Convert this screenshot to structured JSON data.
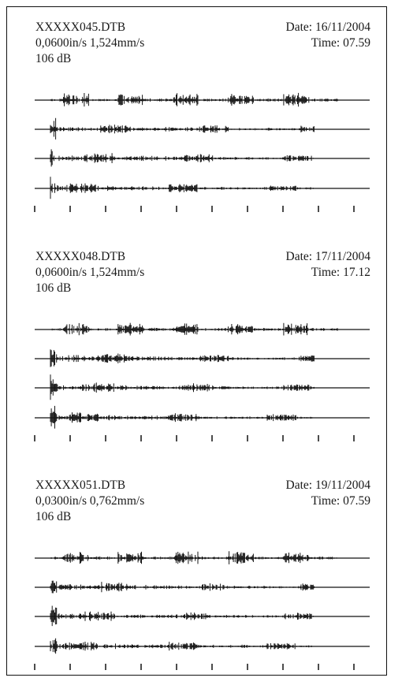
{
  "chart_data": {
    "type": "line",
    "records": [
      {
        "filename": "XXXXX045.DTB",
        "date": "Date: 16/11/2004",
        "speed": "0,0600in/s  1,524mm/s",
        "time": "Time: 07.59",
        "level": "106 dB",
        "seed": 11
      },
      {
        "filename": "XXXXX048.DTB",
        "date": "Date: 17/11/2004",
        "speed": "0,0600in/s  1,524mm/s",
        "time": "Time: 17.12",
        "level": "106 dB",
        "seed": 23
      },
      {
        "filename": "XXXXX051.DTB",
        "date": "Date: 19/11/2004",
        "speed": "0,0300in/s  0,762mm/s",
        "time": "Time: 07.59",
        "level": "106 dB",
        "seed": 37
      }
    ],
    "traces_per_record": 4,
    "tick_count": 10
  }
}
